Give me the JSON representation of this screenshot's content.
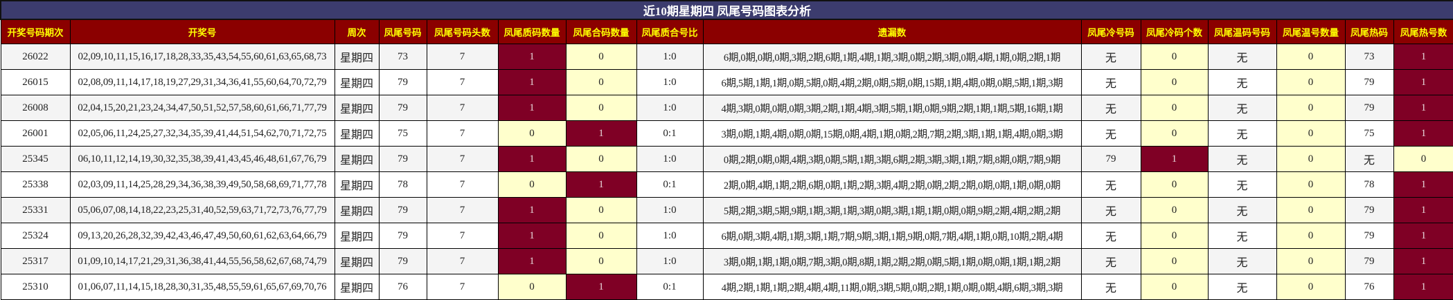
{
  "title": "近10期星期四 凤尾号码图表分析",
  "colors": {
    "title_bg": "#3c3c6e",
    "header_bg": "#8b0000",
    "header_text": "#ffff00",
    "hot_cell": "#7f0025",
    "cool_cell": "#ffffcc"
  },
  "columns": [
    "开奖号码期次",
    "开奖号",
    "周次",
    "凤尾号码",
    "凤尾号码头数",
    "凤尾质码数量",
    "凤尾合码数量",
    "凤尾质合号比",
    "遗漏数",
    "凤尾冷号码",
    "凤尾冷码个数",
    "凤尾温码号码",
    "凤尾温号数量",
    "凤尾热码",
    "凤尾热号数"
  ],
  "rows": [
    [
      "26022",
      "02,09,10,11,15,16,17,18,28,33,35,43,54,55,60,61,63,65,68,73",
      "星期四",
      "73",
      "7",
      "1",
      "0",
      "1:0",
      "6期,0期,0期,0期,3期,2期,6期,1期,4期,1期,3期,0期,2期,3期,0期,4期,1期,0期,2期,1期",
      "无",
      "0",
      "无",
      "0",
      "73",
      "1"
    ],
    [
      "26015",
      "02,08,09,11,14,17,18,19,27,29,31,34,36,41,55,60,64,70,72,79",
      "星期四",
      "79",
      "7",
      "1",
      "0",
      "1:0",
      "6期,5期,1期,1期,0期,5期,0期,4期,2期,0期,5期,0期,15期,1期,4期,0期,0期,5期,1期,3期",
      "无",
      "0",
      "无",
      "0",
      "79",
      "1"
    ],
    [
      "26008",
      "02,04,15,20,21,23,24,34,47,50,51,52,57,58,60,61,66,71,77,79",
      "星期四",
      "79",
      "7",
      "1",
      "0",
      "1:0",
      "4期,3期,0期,0期,0期,3期,2期,1期,4期,3期,5期,1期,0期,9期,2期,1期,1期,5期,16期,1期",
      "无",
      "0",
      "无",
      "0",
      "79",
      "1"
    ],
    [
      "26001",
      "02,05,06,11,24,25,27,32,34,35,39,41,44,51,54,62,70,71,72,75",
      "星期四",
      "75",
      "7",
      "0",
      "1",
      "0:1",
      "3期,0期,1期,4期,0期,0期,15期,0期,4期,1期,0期,2期,7期,2期,3期,1期,1期,4期,0期,3期",
      "无",
      "0",
      "无",
      "0",
      "75",
      "1"
    ],
    [
      "25345",
      "06,10,11,12,14,19,30,32,35,38,39,41,43,45,46,48,61,67,76,79",
      "星期四",
      "79",
      "7",
      "1",
      "0",
      "1:0",
      "0期,2期,0期,0期,4期,3期,0期,5期,1期,3期,6期,2期,3期,3期,1期,7期,8期,0期,7期,9期",
      "79",
      "1",
      "无",
      "0",
      "无",
      "0"
    ],
    [
      "25338",
      "02,03,09,11,14,25,28,29,34,36,38,39,49,50,58,68,69,71,77,78",
      "星期四",
      "78",
      "7",
      "0",
      "1",
      "0:1",
      "2期,0期,4期,1期,2期,6期,0期,1期,2期,3期,4期,2期,0期,2期,2期,0期,0期,1期,0期,0期",
      "无",
      "0",
      "无",
      "0",
      "78",
      "1"
    ],
    [
      "25331",
      "05,06,07,08,14,18,22,23,25,31,40,52,59,63,71,72,73,76,77,79",
      "星期四",
      "79",
      "7",
      "1",
      "0",
      "1:0",
      "5期,2期,3期,5期,9期,1期,3期,1期,3期,0期,3期,1期,1期,0期,0期,9期,2期,4期,2期,2期",
      "无",
      "0",
      "无",
      "0",
      "79",
      "1"
    ],
    [
      "25324",
      "09,13,20,26,28,32,39,42,43,46,47,49,50,60,61,62,63,64,66,79",
      "星期四",
      "79",
      "7",
      "1",
      "0",
      "1:0",
      "6期,0期,3期,4期,1期,3期,1期,7期,9期,3期,1期,9期,0期,7期,4期,1期,0期,10期,2期,4期",
      "无",
      "0",
      "无",
      "0",
      "79",
      "1"
    ],
    [
      "25317",
      "01,09,10,14,17,21,29,31,36,38,41,44,55,56,58,62,67,68,74,79",
      "星期四",
      "79",
      "7",
      "1",
      "0",
      "1:0",
      "3期,0期,1期,1期,0期,7期,3期,0期,8期,1期,2期,2期,0期,5期,1期,0期,0期,1期,1期,2期",
      "无",
      "0",
      "无",
      "0",
      "79",
      "1"
    ],
    [
      "25310",
      "01,06,07,11,14,15,18,28,30,31,35,48,55,59,61,65,67,69,70,76",
      "星期四",
      "76",
      "7",
      "0",
      "1",
      "0:1",
      "4期,2期,1期,1期,2期,4期,4期,11期,0期,3期,5期,0期,2期,1期,0期,0期,4期,6期,3期,3期",
      "无",
      "0",
      "无",
      "0",
      "76",
      "1"
    ]
  ]
}
